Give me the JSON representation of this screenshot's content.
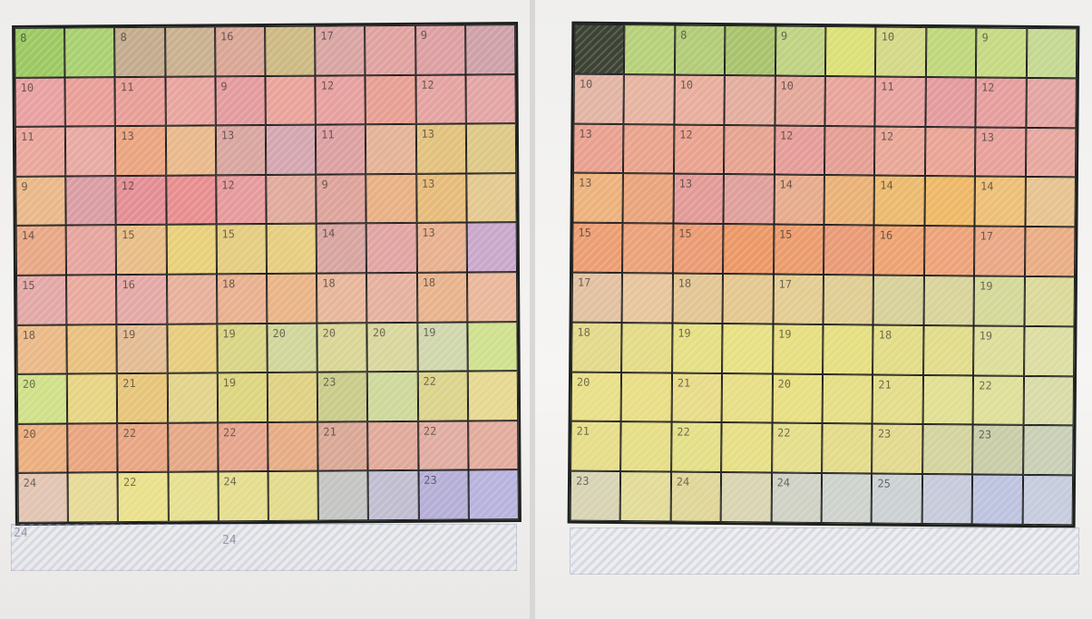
{
  "photos": [
    {
      "id": "left",
      "palette": [
        "#9cc862",
        "#e9a59e",
        "#e6a0a0",
        "#eaa987",
        "#e9ac80",
        "#e4b27e",
        "#e9bd76",
        "#e2d26a",
        "#dfe08c",
        "#c9a8d0",
        "#a9acd3"
      ],
      "cells": [
        [
          [
            "8",
            "#9cc862"
          ],
          [
            "",
            "#a9d070"
          ],
          [
            "8",
            "#c3ab8d"
          ],
          [
            "",
            "#c9b08f"
          ],
          [
            "16",
            "#d9a696"
          ],
          [
            "",
            "#cdb983"
          ],
          [
            "17",
            "#d8a4a2"
          ],
          [
            "",
            "#e0a29f"
          ],
          [
            "9",
            "#dc9fa2"
          ],
          [
            "",
            "#cea1a8"
          ]
        ],
        [
          [
            "10",
            "#e8a0a1"
          ],
          [
            "",
            "#e99f98"
          ],
          [
            "11",
            "#e79e97"
          ],
          [
            "",
            "#e8a49e"
          ],
          [
            "9",
            "#e49b9d"
          ],
          [
            "",
            "#eaa39a"
          ],
          [
            "12",
            "#e6a09f"
          ],
          [
            "",
            "#e79f93"
          ],
          [
            "12",
            "#e4a3a0"
          ],
          [
            "",
            "#e3a5a4"
          ]
        ],
        [
          [
            "11",
            "#e9a69b"
          ],
          [
            "",
            "#e7a9a3"
          ],
          [
            "13",
            "#eaa47f"
          ],
          [
            "",
            "#e9b98b"
          ],
          [
            "13",
            "#d8a59f"
          ],
          [
            "",
            "#d4a6b0"
          ],
          [
            "11",
            "#dca0a2"
          ],
          [
            "",
            "#e4b397"
          ],
          [
            "13",
            "#e2c17d"
          ],
          [
            "",
            "#ddc886"
          ]
        ],
        [
          [
            "9",
            "#e9b889"
          ],
          [
            "",
            "#d99da3"
          ],
          [
            "12",
            "#e38e94"
          ],
          [
            "",
            "#e88e8f"
          ],
          [
            "12",
            "#e69a9c"
          ],
          [
            "",
            "#e0aa9c"
          ],
          [
            "9",
            "#dda39a"
          ],
          [
            "",
            "#e8b084"
          ],
          [
            "13",
            "#e6bb7a"
          ],
          [
            "",
            "#e3c88f"
          ]
        ],
        [
          [
            "14",
            "#e8a785"
          ],
          [
            "",
            "#e6a59f"
          ],
          [
            "15",
            "#e8bc86"
          ],
          [
            "",
            "#e8d07a"
          ],
          [
            "15",
            "#e4cc80"
          ],
          [
            "",
            "#e6cd80"
          ],
          [
            "14",
            "#d7a4a0"
          ],
          [
            "",
            "#e0a4a2"
          ],
          [
            "13",
            "#e7b08f"
          ],
          [
            "",
            "#c9a8cb"
          ]
        ],
        [
          [
            "15",
            "#e2a8a6"
          ],
          [
            "",
            "#e9aa9e"
          ],
          [
            "16",
            "#e3a8a5"
          ],
          [
            "",
            "#e7b09b"
          ],
          [
            "18",
            "#e8b08f"
          ],
          [
            "",
            "#e9b486"
          ],
          [
            "18",
            "#e7b69a"
          ],
          [
            "",
            "#e5b19e"
          ],
          [
            "18",
            "#e8b38c"
          ],
          [
            "",
            "#eab79b"
          ]
        ],
        [
          [
            "18",
            "#eab987"
          ],
          [
            "",
            "#e9c17e"
          ],
          [
            "19",
            "#e2bb92"
          ],
          [
            "",
            "#e7cc7d"
          ],
          [
            "19",
            "#d9d484"
          ],
          [
            "20",
            "#d0d59a"
          ],
          [
            "20",
            "#d9d595"
          ],
          [
            "20",
            "#d9d69d"
          ],
          [
            "19",
            "#d0d6ac"
          ],
          [
            "",
            "#cfe08e"
          ]
        ],
        [
          [
            "20",
            "#cfe088"
          ],
          [
            "",
            "#e7d483"
          ],
          [
            "21",
            "#e6c579"
          ],
          [
            "",
            "#e2d38a"
          ],
          [
            "19",
            "#ddd57e"
          ],
          [
            "",
            "#e0d082"
          ],
          [
            "23",
            "#c9cb89"
          ],
          [
            "",
            "#cdd89a"
          ],
          [
            "22",
            "#dbd38b"
          ],
          [
            "",
            "#e6d891"
          ]
        ],
        [
          [
            "20",
            "#ebae7e"
          ],
          [
            "",
            "#e9a57f"
          ],
          [
            "22",
            "#e7a582"
          ],
          [
            "",
            "#e5a886"
          ],
          [
            "22",
            "#e6a48c"
          ],
          [
            "",
            "#e6ac84"
          ],
          [
            "21",
            "#d9a795"
          ],
          [
            "",
            "#e0a99a"
          ],
          [
            "22",
            "#e0aca1"
          ],
          [
            "",
            "#e2ac9d"
          ]
        ],
        [
          [
            "24",
            "#e1c4b2"
          ],
          [
            "",
            "#e6da96"
          ],
          [
            "22",
            "#eae08c"
          ],
          [
            "",
            "#e6df90"
          ],
          [
            "24",
            "#e5dd8e"
          ],
          [
            "",
            "#e2da8c"
          ],
          [
            "",
            "#c4c4c3"
          ],
          [
            "",
            "#c1bdd0"
          ],
          [
            "23",
            "#b5aed6"
          ],
          [
            "",
            "#b8b3dd"
          ]
        ]
      ],
      "ghost_row": [
        "24",
        "24"
      ]
    },
    {
      "id": "right",
      "palette": [
        "#3c4234",
        "#a9c46a",
        "#c0d27a",
        "#e8a699",
        "#ea9b8c",
        "#eb9c72",
        "#eebb6e",
        "#dde27b",
        "#e3e58a",
        "#cfd2b8",
        "#c8cce0"
      ],
      "cells": [
        [
          [
            "",
            "#3c4234"
          ],
          [
            "",
            "#b6d079"
          ],
          [
            "8",
            "#b1cb77"
          ],
          [
            "",
            "#a8c36c"
          ],
          [
            "9",
            "#bfd282"
          ],
          [
            "",
            "#dbe077"
          ],
          [
            "10",
            "#d3d886"
          ],
          [
            "",
            "#bfd77b"
          ],
          [
            "9",
            "#c6d982"
          ],
          [
            "",
            "#c4d891"
          ]
        ],
        [
          [
            "10",
            "#e1b4a4"
          ],
          [
            "",
            "#e6b4a0"
          ],
          [
            "10",
            "#e8ad9c"
          ],
          [
            "",
            "#e3ad9e"
          ],
          [
            "10",
            "#e3a79a"
          ],
          [
            "",
            "#e8a39a"
          ],
          [
            "11",
            "#e7a29e"
          ],
          [
            "",
            "#e39b9d"
          ],
          [
            "12",
            "#e59e9d"
          ],
          [
            "",
            "#e2a5a2"
          ]
        ],
        [
          [
            "13",
            "#e9a08f"
          ],
          [
            "",
            "#e9a38c"
          ],
          [
            "12",
            "#e9a28e"
          ],
          [
            "",
            "#e6a38f"
          ],
          [
            "12",
            "#e59c98"
          ],
          [
            "",
            "#e49e94"
          ],
          [
            "12",
            "#e8a796"
          ],
          [
            "",
            "#e9a495"
          ],
          [
            "13",
            "#e7a09a"
          ],
          [
            "",
            "#e6a79f"
          ]
        ],
        [
          [
            "13",
            "#ecb27c"
          ],
          [
            "",
            "#e9a47c"
          ],
          [
            "13",
            "#e29a97"
          ],
          [
            "",
            "#df9f9b"
          ],
          [
            "14",
            "#e6ab8c"
          ],
          [
            "",
            "#eab177"
          ],
          [
            "14",
            "#ebba6e"
          ],
          [
            "",
            "#eeb866"
          ],
          [
            "14",
            "#edbf76"
          ],
          [
            "",
            "#e6c38f"
          ]
        ],
        [
          [
            "15",
            "#ec9d72"
          ],
          [
            "",
            "#eba179"
          ],
          [
            "15",
            "#eb9b73"
          ],
          [
            "",
            "#ec9866"
          ],
          [
            "15",
            "#eb9b6c"
          ],
          [
            "",
            "#ea9a76"
          ],
          [
            "16",
            "#eda271"
          ],
          [
            "",
            "#eda279"
          ],
          [
            "17",
            "#eaa785"
          ],
          [
            "",
            "#e9ad84"
          ]
        ],
        [
          [
            "17",
            "#e2c1a1"
          ],
          [
            "",
            "#e7c59c"
          ],
          [
            "18",
            "#e2c593"
          ],
          [
            "",
            "#e4c78f"
          ],
          [
            "17",
            "#e3cc91"
          ],
          [
            "",
            "#e0cd93"
          ],
          [
            "",
            "#d7d09a"
          ],
          [
            "",
            "#d8d39a"
          ],
          [
            "19",
            "#d3d898"
          ],
          [
            "",
            "#dbd999"
          ]
        ],
        [
          [
            "18",
            "#e3d98a"
          ],
          [
            "",
            "#e4db87"
          ],
          [
            "19",
            "#e5df84"
          ],
          [
            "",
            "#e7e184"
          ],
          [
            "19",
            "#e6de80"
          ],
          [
            "",
            "#e5df81"
          ],
          [
            "18",
            "#e2dc86"
          ],
          [
            "",
            "#e1dc8a"
          ],
          [
            "19",
            "#dddd9a"
          ],
          [
            "",
            "#dcdda2"
          ]
        ],
        [
          [
            "20",
            "#e8df87"
          ],
          [
            "",
            "#e9dd85"
          ],
          [
            "21",
            "#e8db88"
          ],
          [
            "",
            "#e7de85"
          ],
          [
            "20",
            "#e7df82"
          ],
          [
            "",
            "#e5de85"
          ],
          [
            "21",
            "#e3dd8a"
          ],
          [
            "",
            "#e0df92"
          ],
          [
            "22",
            "#dedf98"
          ],
          [
            "",
            "#d9dba7"
          ]
        ],
        [
          [
            "21",
            "#e6dd88"
          ],
          [
            "",
            "#e5de86"
          ],
          [
            "22",
            "#e3df87"
          ],
          [
            "",
            "#e7df86"
          ],
          [
            "22",
            "#e4de8b"
          ],
          [
            "",
            "#e3db89"
          ],
          [
            "23",
            "#e2d98e"
          ],
          [
            "",
            "#d3d39e"
          ],
          [
            "23",
            "#c8cca7"
          ],
          [
            "",
            "#c8cfb5"
          ]
        ],
        [
          [
            "23",
            "#d7d3b3"
          ],
          [
            "",
            "#e2db98"
          ],
          [
            "24",
            "#dfd598"
          ],
          [
            "",
            "#d9d4b1"
          ],
          [
            "24",
            "#cfd1c5"
          ],
          [
            "",
            "#ced2cc"
          ],
          [
            "25",
            "#cbd0d3"
          ],
          [
            "",
            "#c6cada"
          ],
          [
            "",
            "#bdc3df"
          ],
          [
            "",
            "#c6cbdd"
          ]
        ]
      ],
      "ghost_row": []
    }
  ]
}
